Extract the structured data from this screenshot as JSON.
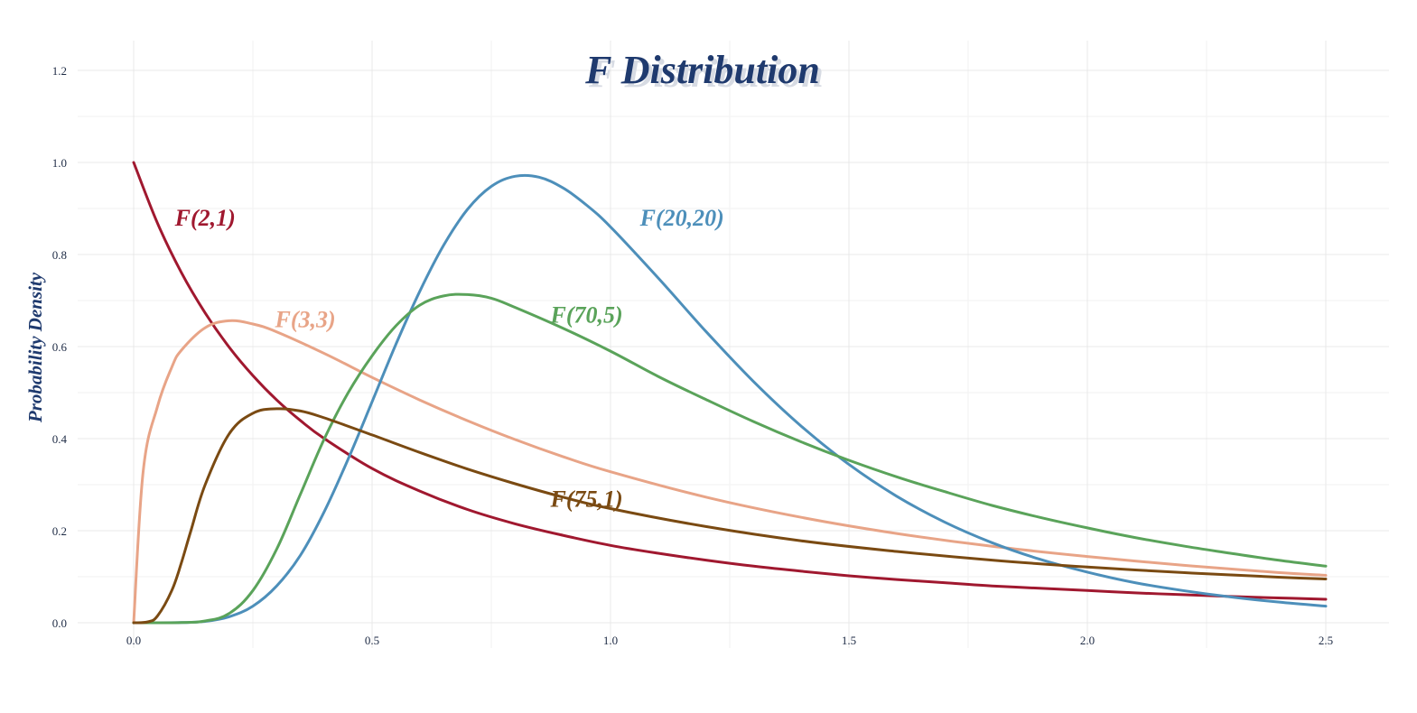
{
  "chart_data": {
    "type": "line",
    "title": "F Distribution",
    "xlabel": "",
    "ylabel": "Probability Density",
    "xlim": [
      0,
      2.5
    ],
    "ylim": [
      0,
      1.2
    ],
    "grid": true,
    "legend": "none",
    "x_ticks": [
      "0.0",
      "0.5",
      "1.0",
      "1.5",
      "2.0",
      "2.5"
    ],
    "y_ticks": [
      "0.0",
      "0.2",
      "0.4",
      "0.6",
      "0.8",
      "1.0",
      "1.2"
    ],
    "x_tick_values": [
      0,
      0.5,
      1.0,
      1.5,
      2.0,
      2.5
    ],
    "y_tick_values": [
      0,
      0.2,
      0.4,
      0.6,
      0.8,
      1.0,
      1.2
    ],
    "series": [
      {
        "name": "F(2,1)",
        "color": "#a0182f",
        "label_at": [
          0.15,
          0.88
        ],
        "x": [
          0,
          0.05,
          0.1,
          0.15,
          0.2,
          0.25,
          0.3,
          0.35,
          0.4,
          0.5,
          0.6,
          0.7,
          0.8,
          0.9,
          1.0,
          1.1,
          1.2,
          1.3,
          1.4,
          1.5,
          1.6,
          1.7,
          1.8,
          1.9,
          2.0,
          2.1,
          2.2,
          2.3,
          2.4,
          2.5
        ],
        "y": [
          1.0,
          0.868,
          0.761,
          0.673,
          0.599,
          0.537,
          0.484,
          0.439,
          0.4,
          0.335,
          0.286,
          0.246,
          0.215,
          0.19,
          0.168,
          0.151,
          0.136,
          0.123,
          0.112,
          0.102,
          0.094,
          0.087,
          0.08,
          0.075,
          0.07,
          0.065,
          0.061,
          0.057,
          0.054,
          0.051
        ]
      },
      {
        "name": "F(3,3)",
        "color": "#e8a487",
        "label_at": [
          0.36,
          0.66
        ],
        "x": [
          0,
          0.02,
          0.05,
          0.08,
          0.1,
          0.15,
          0.2,
          0.25,
          0.3,
          0.4,
          0.5,
          0.6,
          0.7,
          0.8,
          0.9,
          1.0,
          1.2,
          1.4,
          1.6,
          1.8,
          2.0,
          2.2,
          2.4,
          2.5
        ],
        "y": [
          0,
          0.33,
          0.47,
          0.555,
          0.592,
          0.641,
          0.656,
          0.649,
          0.632,
          0.585,
          0.533,
          0.484,
          0.439,
          0.398,
          0.361,
          0.328,
          0.273,
          0.229,
          0.194,
          0.166,
          0.144,
          0.125,
          0.109,
          0.103
        ]
      },
      {
        "name": "F(20,20)",
        "color": "#4d8fba",
        "label_at": [
          1.15,
          0.88
        ],
        "x": [
          0,
          0.1,
          0.15,
          0.2,
          0.25,
          0.3,
          0.35,
          0.4,
          0.45,
          0.5,
          0.55,
          0.6,
          0.65,
          0.7,
          0.75,
          0.8,
          0.85,
          0.9,
          0.95,
          1.0,
          1.1,
          1.2,
          1.3,
          1.4,
          1.5,
          1.6,
          1.7,
          1.8,
          1.9,
          2.0,
          2.1,
          2.2,
          2.3,
          2.4,
          2.5
        ],
        "y": [
          0,
          0.0004,
          0.003,
          0.013,
          0.036,
          0.08,
          0.147,
          0.242,
          0.356,
          0.48,
          0.605,
          0.72,
          0.82,
          0.898,
          0.948,
          0.97,
          0.968,
          0.945,
          0.907,
          0.86,
          0.749,
          0.633,
          0.524,
          0.427,
          0.344,
          0.275,
          0.219,
          0.174,
          0.138,
          0.11,
          0.087,
          0.07,
          0.056,
          0.045,
          0.036
        ]
      },
      {
        "name": "F(70,5)",
        "color": "#5aa35a",
        "label_at": [
          0.95,
          0.67
        ],
        "x": [
          0,
          0.1,
          0.15,
          0.2,
          0.25,
          0.3,
          0.35,
          0.4,
          0.45,
          0.5,
          0.55,
          0.6,
          0.65,
          0.7,
          0.75,
          0.8,
          0.9,
          1.0,
          1.1,
          1.2,
          1.3,
          1.4,
          1.5,
          1.6,
          1.7,
          1.8,
          1.9,
          2.0,
          2.1,
          2.2,
          2.3,
          2.4,
          2.5
        ],
        "y": [
          0,
          0.0005,
          0.004,
          0.02,
          0.07,
          0.16,
          0.28,
          0.4,
          0.5,
          0.58,
          0.645,
          0.69,
          0.71,
          0.713,
          0.705,
          0.685,
          0.64,
          0.59,
          0.535,
          0.485,
          0.437,
          0.393,
          0.353,
          0.317,
          0.285,
          0.255,
          0.229,
          0.206,
          0.185,
          0.167,
          0.151,
          0.136,
          0.123
        ]
      },
      {
        "name": "F(75,1)",
        "color": "#7a4a12",
        "label_at": [
          0.95,
          0.27
        ],
        "x": [
          0,
          0.03,
          0.05,
          0.08,
          0.1,
          0.12,
          0.15,
          0.2,
          0.25,
          0.3,
          0.35,
          0.4,
          0.5,
          0.6,
          0.7,
          0.8,
          0.9,
          1.0,
          1.2,
          1.4,
          1.6,
          1.8,
          2.0,
          2.2,
          2.4,
          2.5
        ],
        "y": [
          0,
          0.002,
          0.015,
          0.07,
          0.13,
          0.2,
          0.3,
          0.41,
          0.455,
          0.465,
          0.46,
          0.445,
          0.408,
          0.37,
          0.334,
          0.302,
          0.273,
          0.248,
          0.209,
          0.178,
          0.155,
          0.136,
          0.121,
          0.109,
          0.099,
          0.095
        ]
      }
    ]
  }
}
